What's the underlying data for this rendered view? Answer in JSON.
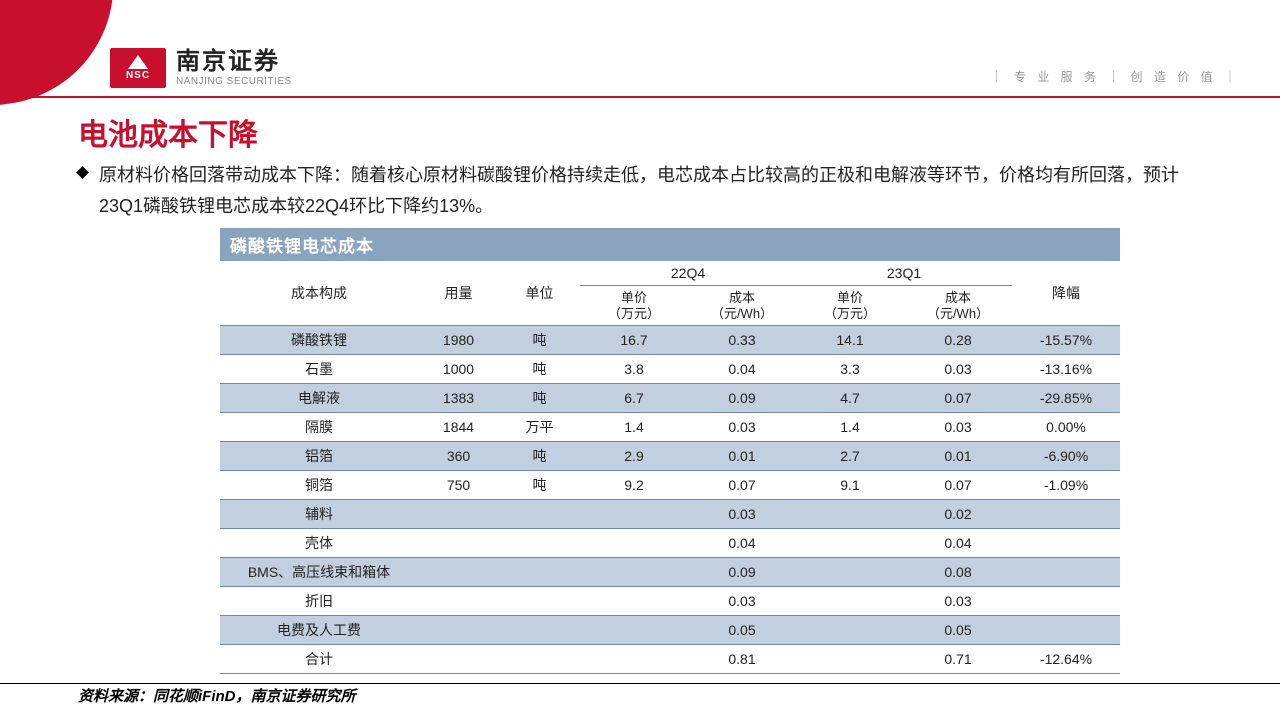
{
  "brand": {
    "badge": "NSC",
    "name_cn": "南京证券",
    "name_en": "NANJING SECURITIES"
  },
  "slogan": "｜ 专 业 服 务 ｜ 创 造 价 值 ｜",
  "title": "电池成本下降",
  "bullet": "原材料价格回落带动成本下降：随着核心原材料碳酸锂价格持续走低，电芯成本占比较高的正极和电解液等环节，价格均有所回落，预计23Q1磷酸铁锂电芯成本较22Q4环比下降约13%。",
  "table": {
    "caption": "磷酸铁锂电芯成本",
    "columns": {
      "c1": "成本构成",
      "c2": "用量",
      "c3": "单位",
      "g1": "22Q4",
      "g2": "23Q1",
      "s_price": "单价\n（万元）",
      "s_cost": "成本\n（元/Wh）",
      "c8": "降幅"
    },
    "rows": [
      {
        "band": true,
        "cells": [
          "磷酸铁锂",
          "1980",
          "吨",
          "16.7",
          "0.33",
          "14.1",
          "0.28",
          "-15.57%"
        ]
      },
      {
        "band": false,
        "cells": [
          "石墨",
          "1000",
          "吨",
          "3.8",
          "0.04",
          "3.3",
          "0.03",
          "-13.16%"
        ]
      },
      {
        "band": true,
        "cells": [
          "电解液",
          "1383",
          "吨",
          "6.7",
          "0.09",
          "4.7",
          "0.07",
          "-29.85%"
        ]
      },
      {
        "band": false,
        "cells": [
          "隔膜",
          "1844",
          "万平",
          "1.4",
          "0.03",
          "1.4",
          "0.03",
          "0.00%"
        ]
      },
      {
        "band": true,
        "cells": [
          "铝箔",
          "360",
          "吨",
          "2.9",
          "0.01",
          "2.7",
          "0.01",
          "-6.90%"
        ]
      },
      {
        "band": false,
        "cells": [
          "铜箔",
          "750",
          "吨",
          "9.2",
          "0.07",
          "9.1",
          "0.07",
          "-1.09%"
        ]
      },
      {
        "band": true,
        "cells": [
          "辅料",
          "",
          "",
          "",
          "0.03",
          "",
          "0.02",
          ""
        ]
      },
      {
        "band": false,
        "cells": [
          "壳体",
          "",
          "",
          "",
          "0.04",
          "",
          "0.04",
          ""
        ]
      },
      {
        "band": true,
        "cells": [
          "BMS、高压线束和箱体",
          "",
          "",
          "",
          "0.09",
          "",
          "0.08",
          ""
        ]
      },
      {
        "band": false,
        "cells": [
          "折旧",
          "",
          "",
          "",
          "0.03",
          "",
          "0.03",
          ""
        ]
      },
      {
        "band": true,
        "cells": [
          "电费及人工费",
          "",
          "",
          "",
          "0.05",
          "",
          "0.05",
          ""
        ]
      },
      {
        "band": false,
        "cells": [
          "合计",
          "",
          "",
          "",
          "0.81",
          "",
          "0.71",
          "-12.64%"
        ]
      }
    ]
  },
  "source": "资料来源：同花顺iFinD，南京证券研究所",
  "colors": {
    "brand_red": "#c8102e",
    "band_blue": "#c1cfde",
    "caption_blue": "#8aa3bf",
    "rule_blue": "#6c89a8"
  }
}
